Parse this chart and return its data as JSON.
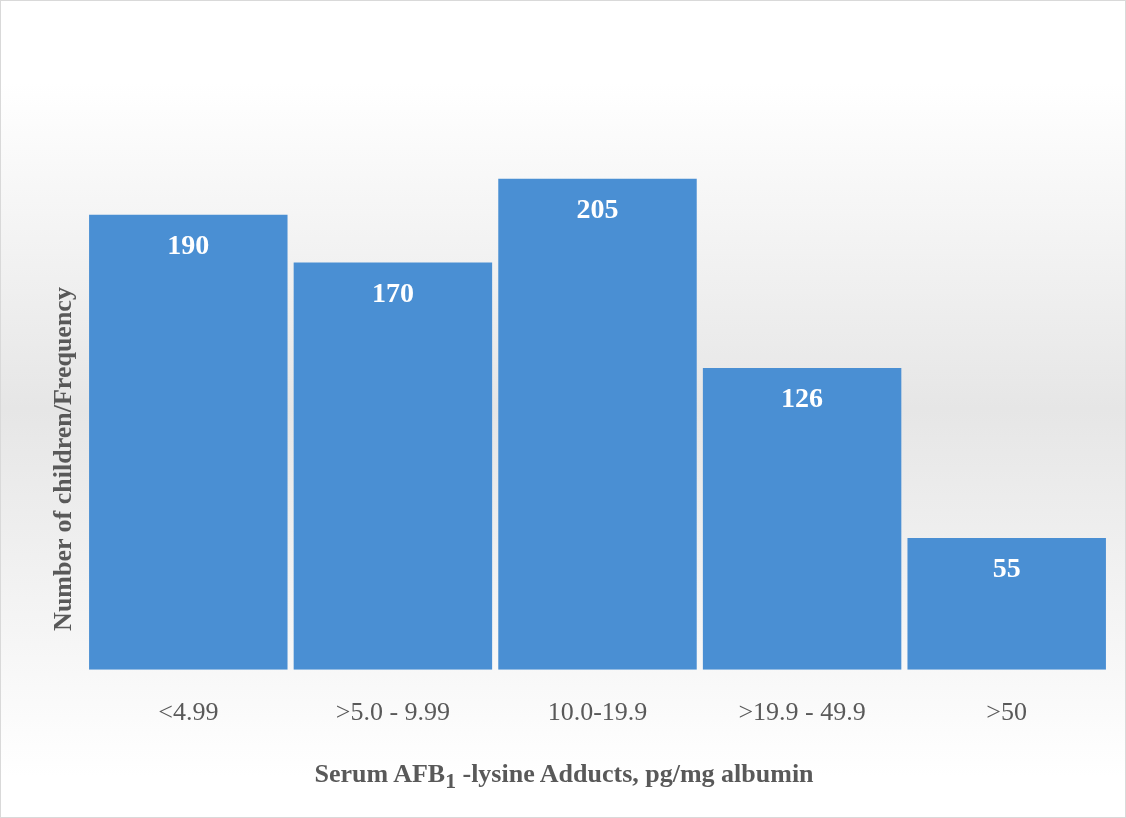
{
  "chart_data": {
    "type": "bar",
    "xlabel": "Serum AFB$_{1}$ -lysine Adducts, pg/mg albumin",
    "ylabel": "Number of children/Frequency",
    "categories": [
      "<4.99",
      ">5.0 - 9.99",
      "10.0-19.9",
      ">19.9 - 49.9",
      ">50"
    ],
    "values": [
      190,
      170,
      205,
      126,
      55
    ],
    "color": "#4a8fd3",
    "data_labels": true,
    "grid": false,
    "legend": false
  }
}
